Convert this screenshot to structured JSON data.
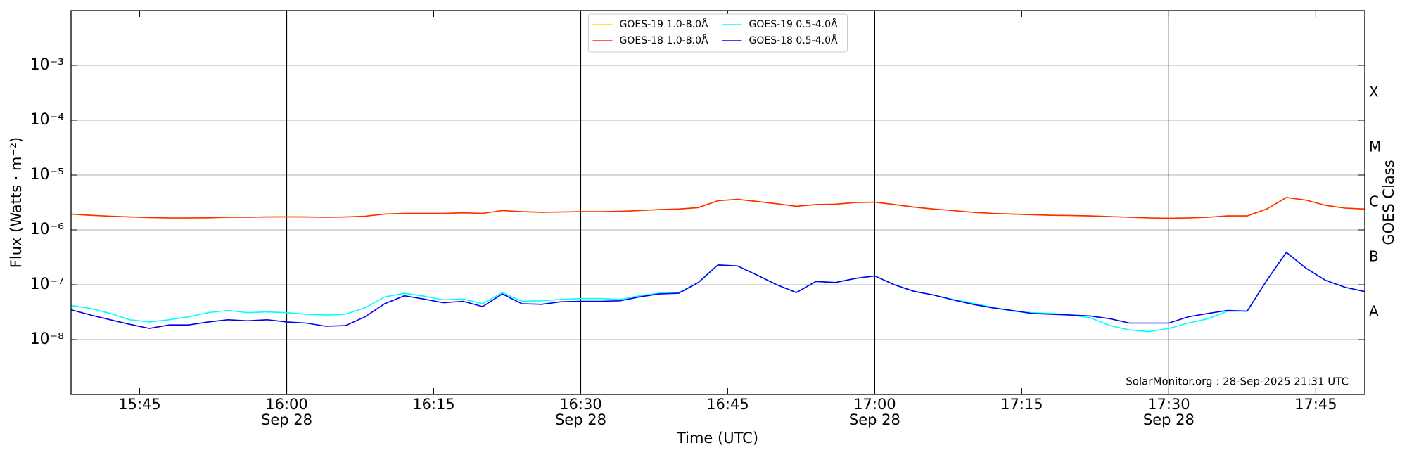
{
  "chart_data": {
    "type": "line",
    "ylabel": "Flux (Watts · m⁻²)",
    "xlabel": "Time (UTC)",
    "y2label": "GOES Class",
    "annotation": "SolarMonitor.org : 28-Sep-2025 21:31 UTC",
    "log_y": true,
    "grid": true,
    "legend": "upper center",
    "legend_columns": 2,
    "xlim": [
      "15:38",
      "17:50"
    ],
    "ylim": [
      1e-09,
      0.01
    ],
    "xticks": [
      "15:45",
      {
        "value": "16:00",
        "date": "Sep 28"
      },
      "16:15",
      {
        "value": "16:30",
        "date": "Sep 28"
      },
      "16:45",
      {
        "value": "17:00",
        "date": "Sep 28"
      },
      "17:15",
      {
        "value": "17:30",
        "date": "Sep 28"
      },
      "17:45"
    ],
    "yticks": [
      {
        "value": 1e-08,
        "label": "10⁻⁸"
      },
      {
        "value": 1e-07,
        "label": "10⁻⁷"
      },
      {
        "value": 1e-06,
        "label": "10⁻⁶"
      },
      {
        "value": 1e-05,
        "label": "10⁻⁵"
      },
      {
        "value": 0.0001,
        "label": "10⁻⁴"
      },
      {
        "value": 0.001,
        "label": "10⁻³"
      }
    ],
    "class_bands": [
      {
        "label": "A",
        "from": 1e-08,
        "to": 1e-07
      },
      {
        "label": "B",
        "from": 1e-07,
        "to": 1e-06
      },
      {
        "label": "C",
        "from": 1e-06,
        "to": 1e-05
      },
      {
        "label": "M",
        "from": 1e-05,
        "to": 0.0001
      },
      {
        "label": "X",
        "from": 0.0001,
        "to": 0.001
      }
    ],
    "x": [
      "15:38",
      "15:40",
      "15:42",
      "15:44",
      "15:46",
      "15:48",
      "15:50",
      "15:52",
      "15:54",
      "15:56",
      "15:58",
      "16:00",
      "16:02",
      "16:04",
      "16:06",
      "16:08",
      "16:10",
      "16:12",
      "16:14",
      "16:16",
      "16:18",
      "16:20",
      "16:22",
      "16:24",
      "16:26",
      "16:28",
      "16:30",
      "16:32",
      "16:34",
      "16:36",
      "16:38",
      "16:40",
      "16:42",
      "16:44",
      "16:46",
      "16:48",
      "16:50",
      "16:52",
      "16:54",
      "16:56",
      "16:58",
      "17:00",
      "17:02",
      "17:04",
      "17:06",
      "17:08",
      "17:10",
      "17:12",
      "17:14",
      "17:16",
      "17:18",
      "17:20",
      "17:22",
      "17:24",
      "17:26",
      "17:28",
      "17:30",
      "17:32",
      "17:34",
      "17:36",
      "17:38",
      "17:40",
      "17:42",
      "17:44",
      "17:46",
      "17:48",
      "17:50"
    ],
    "series": [
      {
        "name": "GOES-19 1.0-8.0Å",
        "color": "#ffd700",
        "values": [
          1.95e-06,
          1.85e-06,
          1.78e-06,
          1.72e-06,
          1.68e-06,
          1.65e-06,
          1.65e-06,
          1.66e-06,
          1.7e-06,
          1.7e-06,
          1.72e-06,
          1.73e-06,
          1.72e-06,
          1.7e-06,
          1.72e-06,
          1.78e-06,
          1.95e-06,
          2e-06,
          2e-06,
          2e-06,
          2.05e-06,
          2e-06,
          2.25e-06,
          2.15e-06,
          2.1e-06,
          2.12e-06,
          2.15e-06,
          2.15e-06,
          2.18e-06,
          2.25e-06,
          2.35e-06,
          2.4e-06,
          2.55e-06,
          3.4e-06,
          3.6e-06,
          3.3e-06,
          3e-06,
          2.7e-06,
          2.9e-06,
          2.95e-06,
          3.15e-06,
          3.2e-06,
          2.9e-06,
          2.6e-06,
          2.4e-06,
          2.25e-06,
          2.1e-06,
          2e-06,
          1.95e-06,
          1.9e-06,
          1.85e-06,
          1.83e-06,
          1.8e-06,
          1.75e-06,
          1.7e-06,
          1.65e-06,
          1.63e-06,
          1.65e-06,
          1.7e-06,
          1.8e-06,
          1.8e-06,
          2.4e-06,
          3.9e-06,
          3.5e-06,
          2.8e-06,
          2.5e-06,
          2.4e-06
        ]
      },
      {
        "name": "GOES-18 1.0-8.0Å",
        "color": "#ff2a00",
        "values": [
          1.95e-06,
          1.85e-06,
          1.78e-06,
          1.72e-06,
          1.68e-06,
          1.65e-06,
          1.65e-06,
          1.66e-06,
          1.7e-06,
          1.7e-06,
          1.72e-06,
          1.73e-06,
          1.72e-06,
          1.7e-06,
          1.72e-06,
          1.78e-06,
          1.95e-06,
          2e-06,
          2e-06,
          2e-06,
          2.05e-06,
          2e-06,
          2.25e-06,
          2.15e-06,
          2.1e-06,
          2.12e-06,
          2.15e-06,
          2.15e-06,
          2.18e-06,
          2.25e-06,
          2.35e-06,
          2.4e-06,
          2.55e-06,
          3.4e-06,
          3.6e-06,
          3.3e-06,
          3e-06,
          2.7e-06,
          2.9e-06,
          2.95e-06,
          3.15e-06,
          3.2e-06,
          2.9e-06,
          2.6e-06,
          2.4e-06,
          2.25e-06,
          2.1e-06,
          2e-06,
          1.95e-06,
          1.9e-06,
          1.85e-06,
          1.83e-06,
          1.8e-06,
          1.75e-06,
          1.7e-06,
          1.65e-06,
          1.63e-06,
          1.65e-06,
          1.7e-06,
          1.8e-06,
          1.8e-06,
          2.4e-06,
          3.9e-06,
          3.5e-06,
          2.8e-06,
          2.5e-06,
          2.4e-06
        ]
      },
      {
        "name": "GOES-19 0.5-4.0Å",
        "color": "#00ffff",
        "values": [
          4.2e-08,
          3.7e-08,
          3e-08,
          2.3e-08,
          2.1e-08,
          2.3e-08,
          2.6e-08,
          3.1e-08,
          3.4e-08,
          3.1e-08,
          3.2e-08,
          3.1e-08,
          2.9e-08,
          2.8e-08,
          2.9e-08,
          3.8e-08,
          6e-08,
          7e-08,
          6.2e-08,
          5.3e-08,
          5.5e-08,
          4.5e-08,
          7.2e-08,
          5e-08,
          5.1e-08,
          5.4e-08,
          5.6e-08,
          5.6e-08,
          5.4e-08,
          6.3e-08,
          7e-08,
          7.2e-08,
          1.1e-07,
          2.3e-07,
          2.2e-07,
          1.5e-07,
          1e-07,
          7.2e-08,
          1.15e-07,
          1.1e-07,
          1.3e-07,
          1.45e-07,
          1e-07,
          7.6e-08,
          6.5e-08,
          5.4e-08,
          4.6e-08,
          3.9e-08,
          3.3e-08,
          3.1e-08,
          3e-08,
          2.8e-08,
          2.5e-08,
          1.8e-08,
          1.5e-08,
          1.4e-08,
          1.6e-08,
          2e-08,
          2.4e-08,
          3.3e-08,
          3.3e-08,
          1.2e-07,
          3.9e-07,
          2e-07,
          1.2e-07,
          9e-08,
          7.5e-08
        ]
      },
      {
        "name": "GOES-18 0.5-4.0Å",
        "color": "#0000ee",
        "values": [
          3.5e-08,
          2.8e-08,
          2.3e-08,
          1.9e-08,
          1.6e-08,
          1.85e-08,
          1.85e-08,
          2.1e-08,
          2.3e-08,
          2.2e-08,
          2.3e-08,
          2.1e-08,
          2e-08,
          1.75e-08,
          1.8e-08,
          2.6e-08,
          4.5e-08,
          6.3e-08,
          5.5e-08,
          4.7e-08,
          5e-08,
          4e-08,
          6.8e-08,
          4.5e-08,
          4.4e-08,
          4.9e-08,
          5e-08,
          5e-08,
          5.1e-08,
          6e-08,
          6.8e-08,
          7e-08,
          1.1e-07,
          2.3e-07,
          2.2e-07,
          1.5e-07,
          1e-07,
          7.2e-08,
          1.15e-07,
          1.1e-07,
          1.3e-07,
          1.45e-07,
          1e-07,
          7.6e-08,
          6.5e-08,
          5.3e-08,
          4.4e-08,
          3.8e-08,
          3.4e-08,
          3e-08,
          2.9e-08,
          2.8e-08,
          2.7e-08,
          2.4e-08,
          2e-08,
          2e-08,
          2e-08,
          2.6e-08,
          3e-08,
          3.4e-08,
          3.3e-08,
          1.2e-07,
          3.9e-07,
          2e-07,
          1.2e-07,
          9e-08,
          7.5e-08
        ]
      }
    ]
  }
}
